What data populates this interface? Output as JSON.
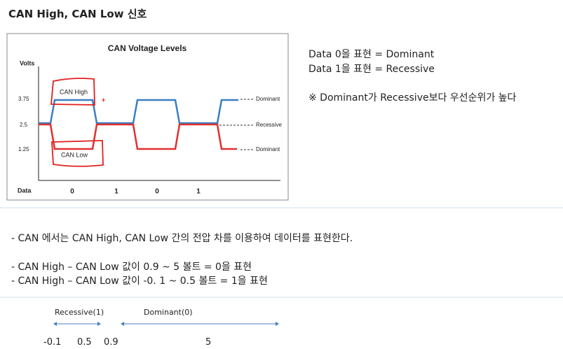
{
  "header": {
    "title": "CAN High, CAN Low 신호"
  },
  "figure": {
    "title": "CAN Voltage Levels",
    "y_axis_label": "Volts",
    "y_levels": [
      "3.75",
      "2.5",
      "1.25"
    ],
    "x_axis_label": "Data",
    "bits": [
      "0",
      "1",
      "0",
      "1"
    ],
    "line_labels": [
      "CAN High",
      "CAN Low"
    ],
    "level_names": [
      "Dominant",
      "Recessive",
      "Dominant"
    ]
  },
  "notes": [
    "Data 0을 표현 = Dominant",
    "Data 1을 표현 = Recessive",
    "※ Dominant가 Recessive보다 우선순위가 높다"
  ],
  "bullets": [
    "-  CAN 에서는 CAN High, CAN Low 간의 전압 차를 이용하여 데이터를 표현한다.",
    "-    CAN High – CAN Low 값이   0.9 ~ 5  볼트 =   0을 표현",
    "-    CAN High – CAN Low 값이  -0. 1 ~ 0.5 볼트 = 1을 표현"
  ],
  "range": {
    "labels": [
      "Recessive(1)",
      "Dominant(0)"
    ],
    "numbers": [
      "-0.1",
      "0.5",
      "0.9",
      "5"
    ]
  }
}
